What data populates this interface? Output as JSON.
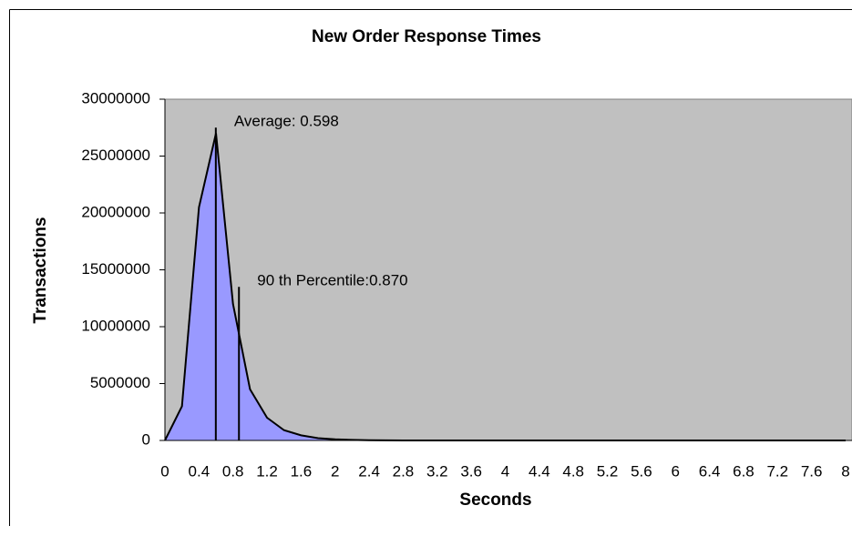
{
  "chart_data": {
    "type": "area",
    "title": "New Order Response Times",
    "x_label": "Seconds",
    "y_label": "Transactions",
    "x": [
      0,
      0.2,
      0.4,
      0.6,
      0.8,
      1.0,
      1.2,
      1.4,
      1.6,
      1.8,
      2.0,
      2.2,
      2.4,
      2.6,
      2.8,
      3.0,
      8
    ],
    "series": [
      {
        "name": "Transactions",
        "color": "#9999ff",
        "values": [
          0,
          3000000,
          20500000,
          27000000,
          12000000,
          4500000,
          2000000,
          900000,
          450000,
          200000,
          100000,
          50000,
          20000,
          10000,
          5000,
          0,
          0
        ]
      }
    ],
    "xlim": [
      0,
      8
    ],
    "xticks": [
      0,
      0.4,
      0.8,
      1.2,
      1.6,
      2,
      2.4,
      2.8,
      3.2,
      3.6,
      4,
      4.4,
      4.8,
      5.2,
      5.6,
      6,
      6.4,
      6.8,
      7.2,
      7.6,
      8
    ],
    "ylim": [
      0,
      30000000
    ],
    "yticks": [
      0,
      5000000,
      10000000,
      15000000,
      20000000,
      25000000,
      30000000
    ],
    "annotations": [
      {
        "text": "Average: 0.598",
        "x": 0.598,
        "y": 27500000
      },
      {
        "text": "90 th Percentile:0.870",
        "x": 0.87,
        "y": 13500000
      }
    ],
    "plot_background": "#c0c0c0"
  }
}
